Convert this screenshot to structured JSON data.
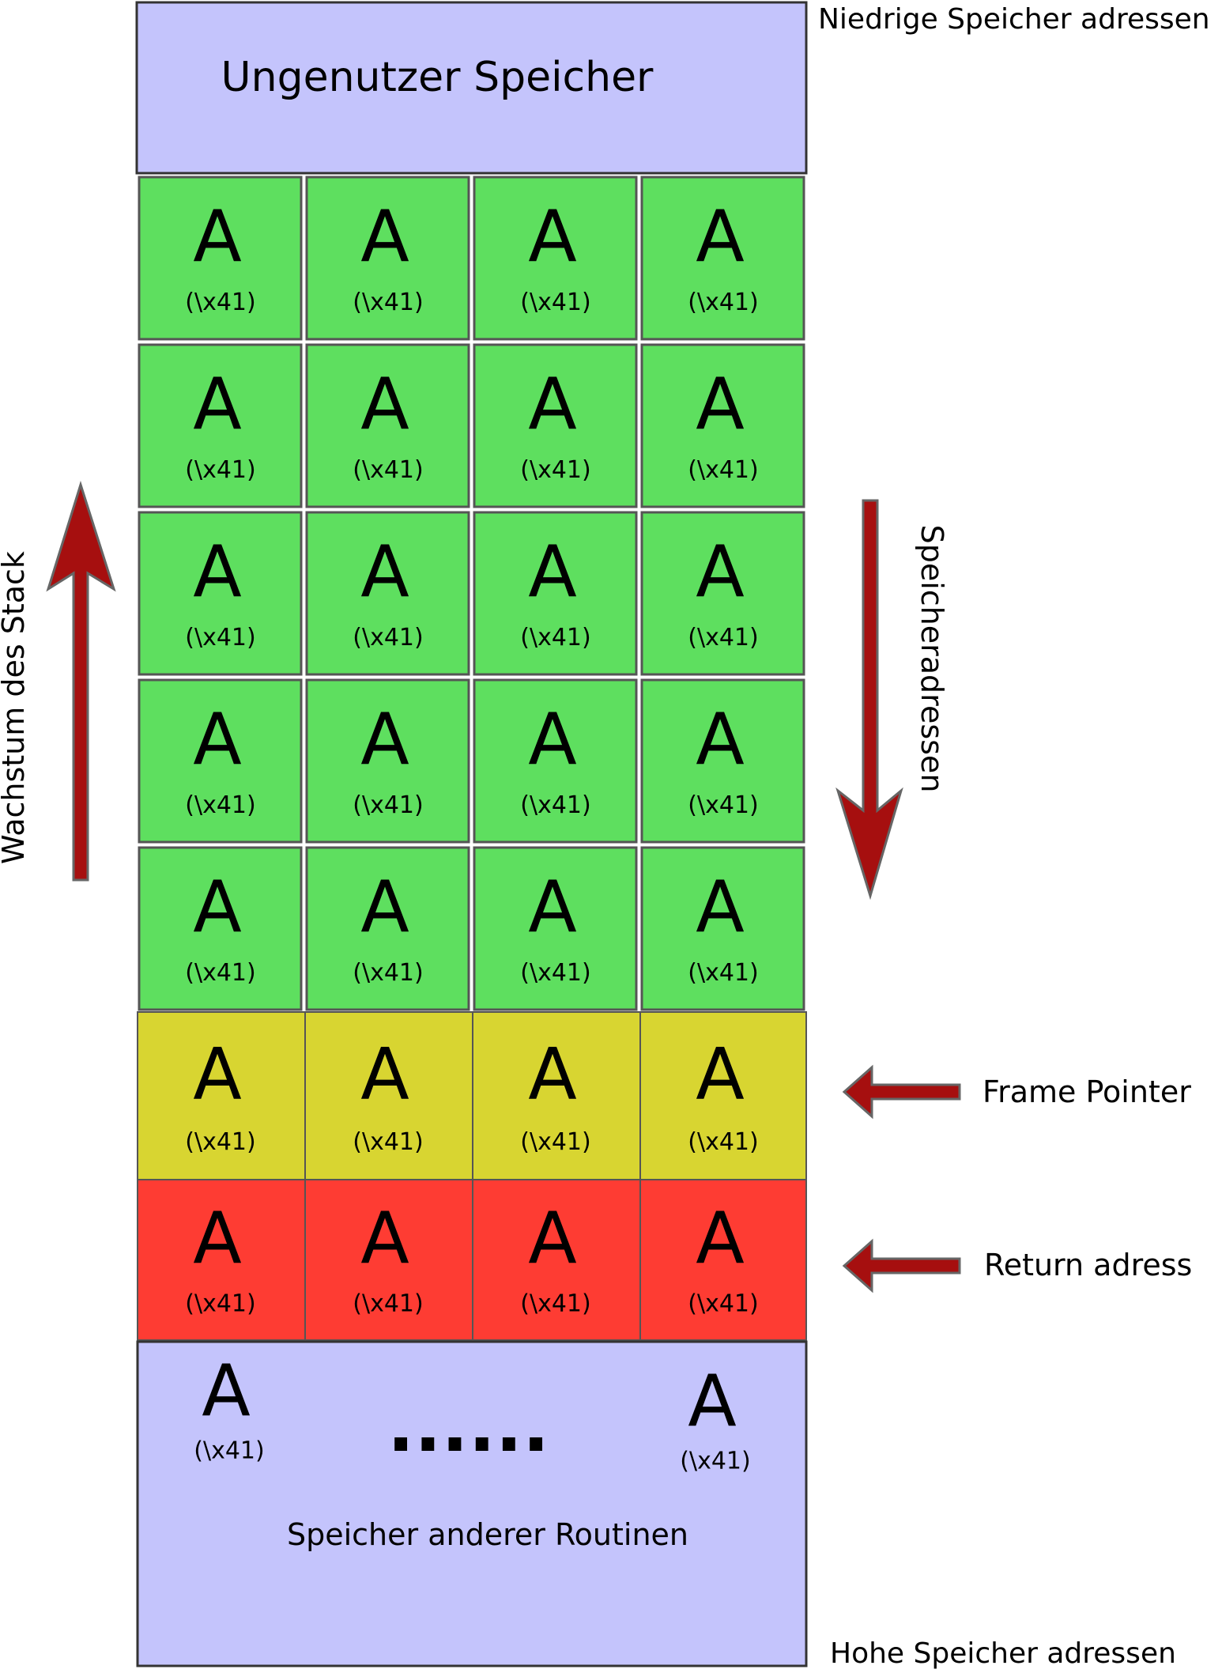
{
  "labels": {
    "top_right": "Niedrige Speicher adressen",
    "bottom_right": "Hohe Speicher adressen",
    "unused": "Ungenutzer Speicher",
    "other_routines": "Speicher anderer Routinen",
    "stack_growth": "Wachstum des Stack",
    "address_direction": "Speicheradressen",
    "frame_pointer": "Frame Pointer",
    "return_address": "Return adress",
    "ellipsis": "......"
  },
  "cell": {
    "letter": "A",
    "hex": "(\\x41)"
  },
  "colors": {
    "unused": "#c4c4fc",
    "buffer": "#5edf5f",
    "frame_pointer": "#d8d531",
    "return_address": "#fe3c33",
    "other": "#c4c4fc",
    "arrow": "#a60f0f",
    "border": "#555555"
  },
  "rows": [
    {
      "type": "buffer",
      "cells": 4
    },
    {
      "type": "buffer",
      "cells": 4
    },
    {
      "type": "buffer",
      "cells": 4
    },
    {
      "type": "buffer",
      "cells": 4
    },
    {
      "type": "buffer",
      "cells": 4
    },
    {
      "type": "frame_pointer",
      "cells": 4
    },
    {
      "type": "return_address",
      "cells": 4
    }
  ]
}
